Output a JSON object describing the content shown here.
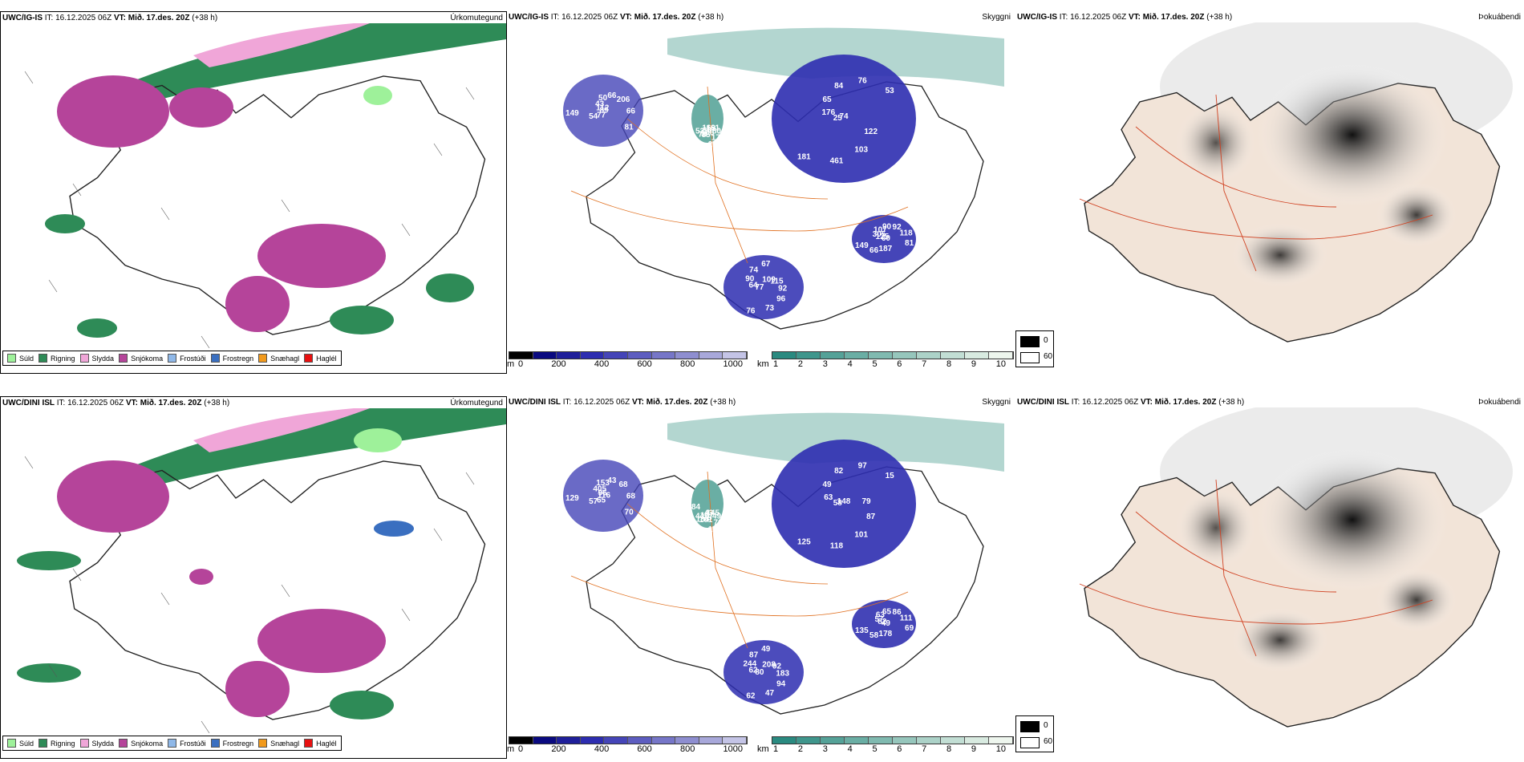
{
  "rows": [
    {
      "model": "UWC/IG-IS",
      "precip": {
        "it": "IT: 16.12.2025 06Z",
        "vt": "VT: Mið. 17.des. 20Z",
        "lead": "(+38 h)",
        "variable": "Úrkomutegund"
      },
      "ceiling": {
        "it": "IT: 16.12.2025 06Z",
        "vt": "VT: Mið. 17.des. 20Z",
        "lead": "(+38 h)",
        "variable": "Skyggni",
        "labels": [
          "74",
          "54",
          "67",
          "60",
          "52",
          "53",
          "77",
          "74",
          "81",
          "78",
          "76",
          "89",
          "90",
          "118",
          "85",
          "84",
          "81",
          "64",
          "92",
          "106",
          "65",
          "66",
          "77",
          "90",
          "274",
          "176",
          "206",
          "76",
          "107",
          "172",
          "25",
          "66",
          "73",
          "305",
          "80",
          "181",
          "50",
          "96",
          "125",
          "161",
          "461",
          "43",
          "92",
          "149",
          "169",
          "103",
          "112",
          "115",
          "66",
          "30",
          "122",
          "149",
          "109",
          "187"
        ]
      },
      "fog": {
        "it": "IT: 16.12.2025 06Z",
        "vt": "VT: Mið. 17.des. 20Z",
        "lead": "(+38 h)",
        "variable": "Þokuábendi"
      }
    },
    {
      "model": "UWC/DINI ISL",
      "precip": {
        "it": "IT: 16.12.2025 06Z",
        "vt": "VT: Mið. 17.des. 20Z",
        "lead": "(+38 h)",
        "variable": "Úrkomutegund"
      },
      "ceiling": {
        "it": "IT: 16.12.2025 06Z",
        "vt": "VT: Mið. 17.des. 20Z",
        "lead": "(+38 h)",
        "variable": "Skyggni",
        "labels": [
          "148",
          "57",
          "49",
          "49",
          "44",
          "15",
          "65",
          "87",
          "69",
          "184",
          "97",
          "116",
          "244",
          "111",
          "101",
          "82",
          "70",
          "62",
          "86",
          "75",
          "49",
          "68",
          "80",
          "65",
          "121",
          "63",
          "68",
          "62",
          "63",
          "70",
          "58",
          "43",
          "47",
          "57",
          "49",
          "125",
          "153",
          "94",
          "82",
          "145",
          "118",
          "405",
          "183",
          "135",
          "43",
          "101",
          "96",
          "92",
          "58",
          "107",
          "87",
          "129",
          "208",
          "178",
          "84",
          "79"
        ]
      },
      "fog": {
        "it": "IT: 16.12.2025 06Z",
        "vt": "VT: Mið. 17.des. 20Z",
        "lead": "(+38 h)",
        "variable": "Þokuábendi"
      }
    }
  ],
  "precip_legend": [
    {
      "label": "Súld",
      "color": "#9ef19a"
    },
    {
      "label": "Rigning",
      "color": "#2e8b57"
    },
    {
      "label": "Slydda",
      "color": "#f0a6d8"
    },
    {
      "label": "Snjókoma",
      "color": "#b5449a"
    },
    {
      "label": "Frostúði",
      "color": "#8fb8e8"
    },
    {
      "label": "Frostregn",
      "color": "#3a6fc0"
    },
    {
      "label": "Snæhagl",
      "color": "#f29a1c"
    },
    {
      "label": "Haglél",
      "color": "#e81010"
    }
  ],
  "ceiling_scale": {
    "unit": "m",
    "ticks": [
      "0",
      "200",
      "400",
      "600",
      "800",
      "1000"
    ],
    "colors": [
      "#000000",
      "#0a0a80",
      "#1f1f9a",
      "#2d2db0",
      "#4545b8",
      "#5d5dc0",
      "#7676c8",
      "#8e8ed0",
      "#a8a8da",
      "#c4c4e6"
    ]
  },
  "visibility_scale": {
    "unit": "km",
    "ticks": [
      "1",
      "2",
      "3",
      "4",
      "5",
      "6",
      "7",
      "8",
      "9",
      "10"
    ],
    "colors": [
      "#2a8a80",
      "#3f968c",
      "#55a298",
      "#6aaea4",
      "#80bab0",
      "#96c6bc",
      "#acd2c8",
      "#c2ded4",
      "#d8eae0",
      "#eef6ee"
    ]
  },
  "fog_legend": {
    "labels": [
      "0",
      "60"
    ]
  }
}
